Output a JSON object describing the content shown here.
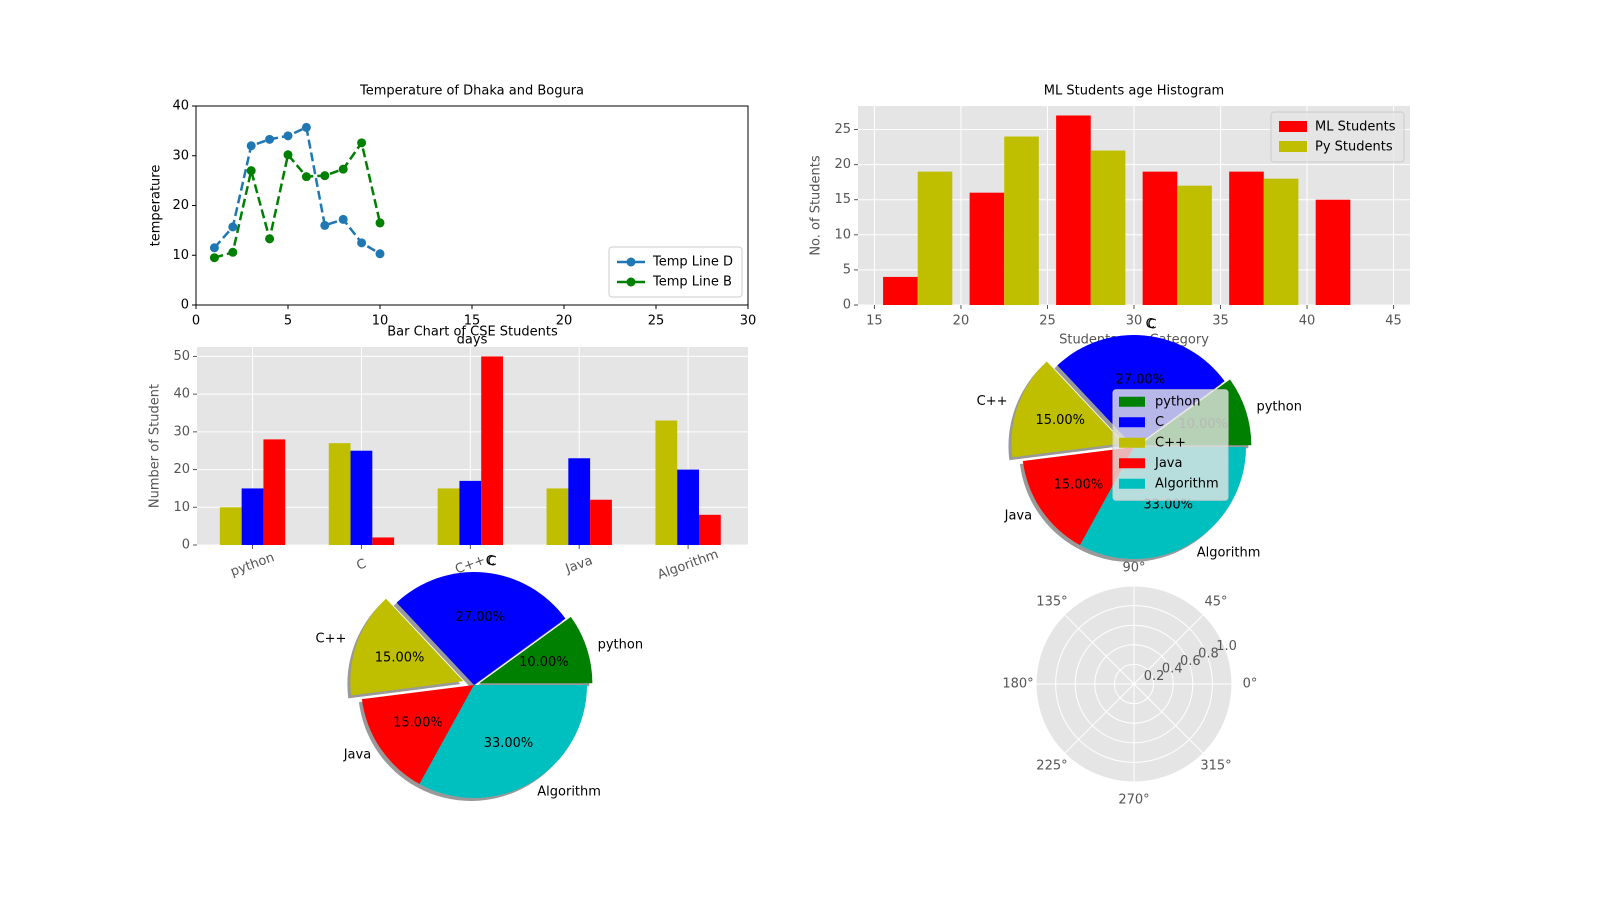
{
  "chart_data": [
    {
      "type": "line",
      "title": "Temperature of Dhaka and Bogura",
      "x_label": "days",
      "y_label": "temperature",
      "x": [
        1,
        2,
        3,
        4,
        5,
        6,
        7,
        8,
        9,
        10
      ],
      "series": [
        {
          "name": "Temp Line D",
          "color": "#1f77b4",
          "values": [
            11.5,
            15.7,
            32,
            33.3,
            34,
            35.7,
            16,
            17.2,
            12.5,
            10.3
          ]
        },
        {
          "name": "Temp Line B",
          "color": "#008000",
          "values": [
            9.5,
            10.6,
            27,
            13.3,
            30.2,
            25.8,
            26,
            27.3,
            32.6,
            16.5
          ]
        }
      ],
      "xlim": [
        0,
        30
      ],
      "xticks": [
        0,
        5,
        10,
        15,
        20,
        25,
        30
      ],
      "ylim": [
        0,
        40
      ],
      "yticks": [
        0,
        10,
        20,
        30,
        40
      ],
      "legend": "lower right",
      "style": "classic",
      "grid": false
    },
    {
      "type": "histogram",
      "title": "ML Students age Histogram",
      "x_label": "Students age Category",
      "y_label": "No. of Students",
      "bins": [
        15,
        20,
        25,
        30,
        35,
        40,
        45
      ],
      "series": [
        {
          "name": "ML Students",
          "color": "#ff0000",
          "values": [
            4,
            16,
            27,
            19,
            19,
            15
          ]
        },
        {
          "name": "Py Students",
          "color": "#bfbf00",
          "values": [
            19,
            24,
            22,
            17,
            18,
            0
          ]
        }
      ],
      "xlim": [
        14.05,
        45.95
      ],
      "xticks": [
        15,
        20,
        25,
        30,
        35,
        40,
        45
      ],
      "ylim": [
        0,
        28.35
      ],
      "yticks": [
        0,
        5,
        10,
        15,
        20,
        25
      ],
      "legend": "upper right",
      "style": "ggplot",
      "grid": true
    },
    {
      "type": "bar",
      "title": "Bar Chart of CSE Students",
      "y_label": "Number of Student",
      "categories": [
        "python",
        "C",
        "C++",
        "Java",
        "Algorithm"
      ],
      "series": [
        {
          "color": "#bfbf00",
          "values": [
            10,
            27,
            15,
            15,
            33
          ]
        },
        {
          "color": "#0000ff",
          "values": [
            15,
            25,
            17,
            23,
            20
          ]
        },
        {
          "color": "#ff0000",
          "values": [
            28,
            2,
            50,
            12,
            8
          ]
        }
      ],
      "ylim": [
        0,
        52.5
      ],
      "yticks": [
        0,
        10,
        20,
        30,
        40,
        50
      ],
      "style": "ggplot",
      "grid": true
    },
    {
      "type": "pie",
      "title": "C",
      "categories": [
        "python",
        "C",
        "C++",
        "Java",
        "Algorithm"
      ],
      "values": [
        10,
        27,
        15,
        15,
        33
      ],
      "value_labels": [
        "10.00%",
        "27.00%",
        "15.00%",
        "15.00%",
        "33.00%"
      ],
      "colors": [
        "#008000",
        "#0000ff",
        "#bfbf00",
        "#ff0000",
        "#00bfbf"
      ],
      "explode": [
        0.05,
        0,
        0.1,
        0,
        0
      ],
      "startangle": 0,
      "shadow": true
    },
    {
      "type": "pie",
      "title": "C",
      "categories": [
        "python",
        "C",
        "C++",
        "Java",
        "Algorithm"
      ],
      "values": [
        10,
        27,
        15,
        15,
        33
      ],
      "value_labels": [
        "10.00%",
        "27.00%",
        "15.00%",
        "15.00%",
        "33.00%"
      ],
      "colors": [
        "#008000",
        "#0000ff",
        "#bfbf00",
        "#ff0000",
        "#00bfbf"
      ],
      "explode": [
        0.05,
        0,
        0.1,
        0,
        0
      ],
      "startangle": 0,
      "shadow": true,
      "legend": "center right"
    },
    {
      "type": "polar",
      "thetaticks": [
        {
          "value": 0,
          "label": "0°"
        },
        {
          "value": 45,
          "label": "45°"
        },
        {
          "value": 90,
          "label": "90°"
        },
        {
          "value": 135,
          "label": "135°"
        },
        {
          "value": 180,
          "label": "180°"
        },
        {
          "value": 225,
          "label": "225°"
        },
        {
          "value": 270,
          "label": "270°"
        },
        {
          "value": 315,
          "label": "315°"
        }
      ],
      "rlim": [
        0,
        1
      ],
      "rticks": [
        0.2,
        0.4,
        0.6,
        0.8,
        {
          "value": 1,
          "label": "1.0"
        }
      ],
      "rlabel_position": 22.5,
      "grid": true
    }
  ]
}
